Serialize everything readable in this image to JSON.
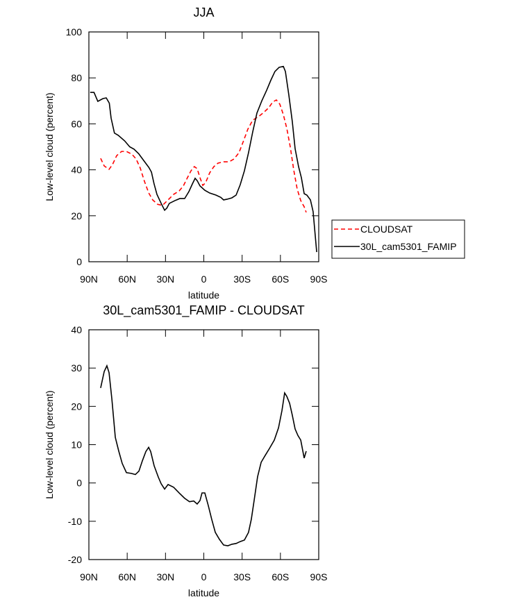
{
  "chart_data": [
    {
      "type": "line",
      "title": "JJA",
      "xlabel": "latitude",
      "ylabel": "Low-level cloud (percent)",
      "xlim": [
        90,
        -90
      ],
      "xticks": [
        {
          "value": 90,
          "label": "90N"
        },
        {
          "value": 60,
          "label": "60N"
        },
        {
          "value": 30,
          "label": "30N"
        },
        0,
        {
          "value": -30,
          "label": "30S"
        },
        {
          "value": -60,
          "label": "60S"
        },
        {
          "value": -90,
          "label": "90S"
        }
      ],
      "ylim": [
        0,
        100
      ],
      "yticks": [
        0,
        20,
        40,
        60,
        80,
        100
      ],
      "legend": "outside-right",
      "series": [
        {
          "name": "CLOUDSAT",
          "color": "#ff0000",
          "dashed": true,
          "x": [
            80.8,
            78,
            74.2,
            71.5,
            68.2,
            64.4,
            60.6,
            56.3,
            53,
            49.8,
            46.5,
            43.2,
            40,
            36.2,
            32.4,
            28,
            23.7,
            19.3,
            16,
            12.8,
            10,
            7.4,
            5.2,
            3,
            0.8,
            -1.4,
            -4.6,
            -7.9,
            -11.1,
            -15.5,
            -19.8,
            -23.6,
            -27.5,
            -30.7,
            -34.5,
            -38.3,
            -42.7,
            -47,
            -50.8,
            -54,
            -56.8,
            -59.5,
            -62.3,
            -65,
            -67.7,
            -70.4,
            -73.1,
            -75.9,
            -78.6,
            -80.2
          ],
          "values": [
            45,
            41.7,
            40.2,
            42.3,
            46.2,
            48,
            48,
            46.8,
            44.7,
            40.8,
            35,
            30,
            26.9,
            25,
            24.5,
            26.9,
            29.3,
            30.8,
            33,
            36.6,
            39.6,
            41.4,
            40.5,
            36.6,
            33.2,
            34.4,
            38.7,
            41.4,
            42.9,
            43.5,
            43.5,
            44.7,
            47.4,
            52,
            57.7,
            61.6,
            63.1,
            65,
            67,
            69.5,
            70.4,
            68.6,
            64,
            58,
            50,
            40,
            31.7,
            26.6,
            23.9,
            21.5
          ]
        },
        {
          "name": "30L_cam5301_FAMIP",
          "color": "#000000",
          "dashed": false,
          "x": [
            89,
            86,
            83,
            79,
            76.4,
            74,
            72.6,
            70,
            67,
            62,
            58,
            54.7,
            51,
            47,
            43,
            41,
            39,
            36.7,
            33.4,
            30.7,
            29,
            27,
            22.6,
            18.8,
            15,
            11.7,
            9,
            6.8,
            5.2,
            3,
            -0.8,
            -4.6,
            -9.5,
            -13.3,
            -15.5,
            -18.2,
            -22,
            -25.3,
            -28.5,
            -31.8,
            -35,
            -38.3,
            -41.6,
            -45.4,
            -49.2,
            -52.5,
            -55.7,
            -59,
            -62.3,
            -63.9,
            -66.6,
            -69.3,
            -71.5,
            -74.2,
            -76.4,
            -78.6,
            -80.7,
            -83.5,
            -85.6,
            -88.4
          ],
          "values": [
            73.7,
            73.7,
            69.8,
            71,
            71.3,
            69,
            62.5,
            56,
            55,
            52.6,
            50,
            49,
            47,
            44,
            41,
            39,
            34,
            29.3,
            25.4,
            22.4,
            23.3,
            25.4,
            26.6,
            27.5,
            27.5,
            30.5,
            33.8,
            36.3,
            35.3,
            33,
            31.1,
            29.9,
            29,
            28,
            26.9,
            27.2,
            27.8,
            29,
            33.5,
            39.6,
            47.4,
            56.5,
            64.7,
            70,
            74.6,
            79,
            82.8,
            84.6,
            85,
            82.8,
            72.5,
            61,
            49.2,
            41.4,
            36.6,
            29.6,
            29,
            26.9,
            21.8,
            4.2
          ]
        }
      ]
    },
    {
      "type": "line",
      "title": "30L_cam5301_FAMIP - CLOUDSAT",
      "xlabel": "latitude",
      "ylabel": "Low-level cloud (percent)",
      "xlim": [
        90,
        -90
      ],
      "xticks": [
        {
          "value": 90,
          "label": "90N"
        },
        {
          "value": 60,
          "label": "60N"
        },
        {
          "value": 30,
          "label": "30N"
        },
        0,
        {
          "value": -30,
          "label": "30S"
        },
        {
          "value": -60,
          "label": "60S"
        },
        {
          "value": -90,
          "label": "90S"
        }
      ],
      "ylim": [
        -20,
        40
      ],
      "yticks": [
        -20,
        -10,
        0,
        10,
        20,
        30,
        40
      ],
      "series": [
        {
          "color": "#000000",
          "dashed": false,
          "x": [
            80.8,
            78,
            75.9,
            74.2,
            72,
            69.3,
            66.6,
            63.9,
            60.6,
            56.8,
            53.6,
            50.8,
            48.1,
            45.4,
            43.2,
            41.6,
            38.9,
            35.6,
            33.4,
            30.7,
            28,
            23.7,
            19.3,
            15,
            11.2,
            7.9,
            5.2,
            3,
            1.4,
            -0.8,
            -3.5,
            -6.2,
            -9,
            -12.2,
            -15.5,
            -18.8,
            -22,
            -25.3,
            -28.5,
            -31.8,
            -35,
            -37.2,
            -39.4,
            -42.1,
            -44.9,
            -48.1,
            -51.4,
            -55.2,
            -58.5,
            -61.2,
            -63.3,
            -65,
            -67.2,
            -69.3,
            -71.5,
            -73.7,
            -75.9,
            -78.6,
            -80.2
          ],
          "values": [
            24.8,
            29.1,
            30.6,
            28.8,
            21.9,
            11.9,
            8.3,
            5.1,
            2.7,
            2.5,
            2.2,
            3.1,
            5.8,
            8.2,
            9.3,
            8.2,
            4.5,
            1.5,
            -0.2,
            -1.6,
            -0.4,
            -1.1,
            -2.6,
            -4,
            -4.9,
            -4.7,
            -5.5,
            -4.6,
            -2.6,
            -2.6,
            -5.9,
            -9.5,
            -12.9,
            -14.7,
            -16.2,
            -16.4,
            -16,
            -15.8,
            -15.3,
            -14.9,
            -12.9,
            -9.5,
            -4.6,
            1.6,
            5.4,
            7.2,
            9,
            11.2,
            14.4,
            18.9,
            23.5,
            22.6,
            20.8,
            17.7,
            14.1,
            12.4,
            11.2,
            6.5,
            8.3
          ]
        }
      ]
    }
  ]
}
